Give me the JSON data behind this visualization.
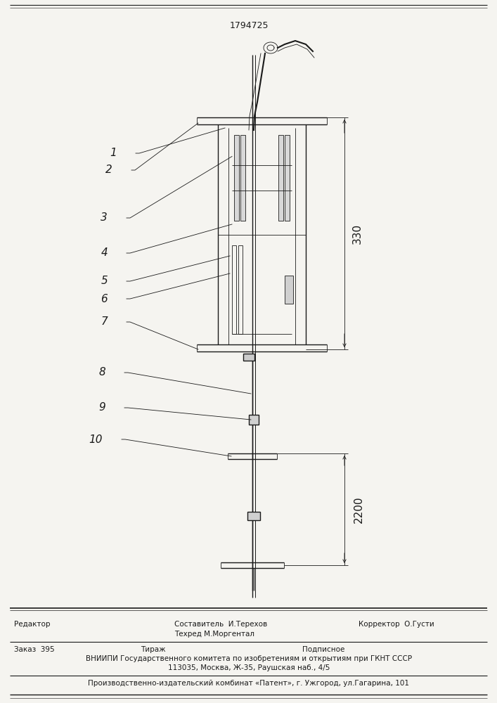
{
  "patent_number": "1794725",
  "bg_color": "#f5f4f0",
  "line_color": "#1a1a1a",
  "dim_330": "330",
  "dim_2200": "2200",
  "footer_line1_left": "Редактор",
  "footer_line1_center1": "Составитель  И.Терехов",
  "footer_line1_center2": "Техред М.Моргентал",
  "footer_line1_right": "Корректор  О.Густи",
  "footer_line2_a": "Заказ  395",
  "footer_line2_b": "Тираж",
  "footer_line2_c": "Подписное",
  "footer_line3": "ВНИИПИ Государственного комитета по изобретениям и открытиям при ГКНТ СССР",
  "footer_line4": "113035, Москва, Ж-35, Раушская наб., 4/5",
  "footer_line5": "Производственно-издательский комбинат «Патент», г. Ужгород, ул.Гагарина, 101"
}
